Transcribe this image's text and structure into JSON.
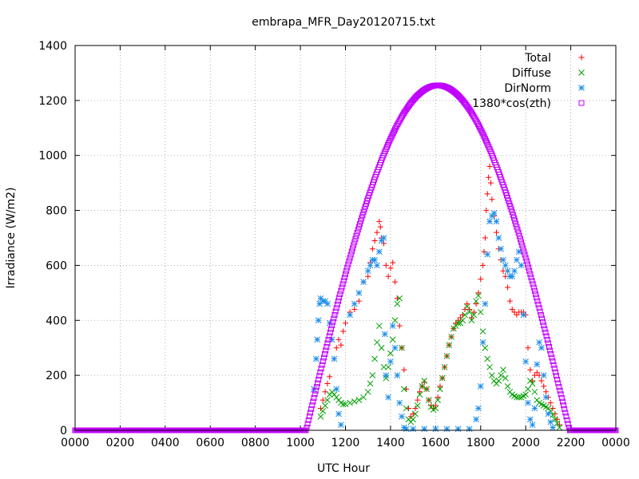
{
  "chart_data": {
    "type": "scatter",
    "title": "embrapa_MFR_Day20120715.txt",
    "xlabel": "UTC Hour",
    "ylabel": "Irradiance (W/m2)",
    "xlim": [
      0,
      24
    ],
    "ylim": [
      0,
      1400
    ],
    "xticks": [
      0,
      2,
      4,
      6,
      8,
      10,
      12,
      14,
      16,
      18,
      20,
      22,
      24
    ],
    "xtick_labels": [
      "0000",
      "0200",
      "0400",
      "0600",
      "0800",
      "1000",
      "1200",
      "1400",
      "1600",
      "1800",
      "2000",
      "2200",
      "0000"
    ],
    "yticks": [
      0,
      200,
      400,
      600,
      800,
      1000,
      1200,
      1400
    ],
    "ytick_labels": [
      "0",
      "200",
      "400",
      "600",
      "800",
      "1000",
      "1200",
      "1400"
    ],
    "grid": true,
    "legend_position": "top-right",
    "series": [
      {
        "name": "Total",
        "marker": "plus",
        "color": "#ff0000",
        "points": [
          [
            10.9,
            80
          ],
          [
            11.0,
            110
          ],
          [
            11.1,
            140
          ],
          [
            11.2,
            170
          ],
          [
            11.3,
            195
          ],
          [
            11.5,
            260
          ],
          [
            11.6,
            300
          ],
          [
            11.7,
            330
          ],
          [
            11.8,
            310
          ],
          [
            11.9,
            360
          ],
          [
            12.0,
            390
          ],
          [
            12.2,
            430
          ],
          [
            12.4,
            440
          ],
          [
            12.6,
            470
          ],
          [
            12.8,
            540
          ],
          [
            13.0,
            560
          ],
          [
            13.1,
            610
          ],
          [
            13.2,
            660
          ],
          [
            13.3,
            690
          ],
          [
            13.4,
            720
          ],
          [
            13.5,
            760
          ],
          [
            13.55,
            740
          ],
          [
            13.6,
            700
          ],
          [
            13.7,
            680
          ],
          [
            13.8,
            600
          ],
          [
            13.9,
            560
          ],
          [
            14.0,
            590
          ],
          [
            14.1,
            610
          ],
          [
            14.2,
            540
          ],
          [
            14.3,
            480
          ],
          [
            14.4,
            380
          ],
          [
            14.5,
            300
          ],
          [
            14.6,
            220
          ],
          [
            14.7,
            150
          ],
          [
            14.8,
            80
          ],
          [
            14.9,
            50
          ],
          [
            15.0,
            60
          ],
          [
            15.1,
            80
          ],
          [
            15.2,
            110
          ],
          [
            15.3,
            140
          ],
          [
            15.4,
            160
          ],
          [
            15.5,
            175
          ],
          [
            15.6,
            150
          ],
          [
            15.7,
            110
          ],
          [
            15.8,
            90
          ],
          [
            15.9,
            80
          ],
          [
            16.0,
            90
          ],
          [
            16.1,
            120
          ],
          [
            16.2,
            160
          ],
          [
            16.3,
            190
          ],
          [
            16.4,
            230
          ],
          [
            16.5,
            270
          ],
          [
            16.6,
            310
          ],
          [
            16.7,
            340
          ],
          [
            16.8,
            370
          ],
          [
            16.9,
            390
          ],
          [
            17.0,
            400
          ],
          [
            17.1,
            410
          ],
          [
            17.2,
            420
          ],
          [
            17.3,
            440
          ],
          [
            17.4,
            460
          ],
          [
            17.5,
            440
          ],
          [
            17.6,
            410
          ],
          [
            17.7,
            430
          ],
          [
            17.8,
            460
          ],
          [
            17.9,
            500
          ],
          [
            18.0,
            550
          ],
          [
            18.1,
            600
          ],
          [
            18.15,
            650
          ],
          [
            18.2,
            700
          ],
          [
            18.25,
            800
          ],
          [
            18.3,
            860
          ],
          [
            18.35,
            920
          ],
          [
            18.4,
            960
          ],
          [
            18.45,
            900
          ],
          [
            18.5,
            840
          ],
          [
            18.6,
            780
          ],
          [
            18.7,
            720
          ],
          [
            18.8,
            660
          ],
          [
            18.9,
            620
          ],
          [
            19.0,
            580
          ],
          [
            19.1,
            560
          ],
          [
            19.2,
            520
          ],
          [
            19.3,
            470
          ],
          [
            19.4,
            440
          ],
          [
            19.5,
            430
          ],
          [
            19.6,
            420
          ],
          [
            19.7,
            430
          ],
          [
            19.8,
            430
          ],
          [
            19.9,
            430
          ],
          [
            20.0,
            420
          ],
          [
            20.1,
            300
          ],
          [
            20.2,
            220
          ],
          [
            20.3,
            180
          ],
          [
            20.4,
            200
          ],
          [
            20.5,
            210
          ],
          [
            20.6,
            200
          ],
          [
            20.7,
            180
          ],
          [
            20.8,
            160
          ],
          [
            20.9,
            140
          ],
          [
            21.0,
            120
          ],
          [
            21.1,
            100
          ],
          [
            21.2,
            80
          ],
          [
            21.3,
            60
          ],
          [
            21.4,
            40
          ],
          [
            21.5,
            20
          ]
        ]
      },
      {
        "name": "Diffuse",
        "marker": "cross",
        "color": "#00a000",
        "points": [
          [
            10.9,
            50
          ],
          [
            11.0,
            70
          ],
          [
            11.1,
            90
          ],
          [
            11.2,
            110
          ],
          [
            11.3,
            130
          ],
          [
            11.4,
            140
          ],
          [
            11.5,
            130
          ],
          [
            11.6,
            120
          ],
          [
            11.7,
            110
          ],
          [
            11.8,
            100
          ],
          [
            11.9,
            95
          ],
          [
            12.0,
            95
          ],
          [
            12.2,
            100
          ],
          [
            12.4,
            105
          ],
          [
            12.6,
            110
          ],
          [
            12.8,
            120
          ],
          [
            13.0,
            140
          ],
          [
            13.1,
            170
          ],
          [
            13.2,
            200
          ],
          [
            13.3,
            260
          ],
          [
            13.4,
            320
          ],
          [
            13.5,
            380
          ],
          [
            13.6,
            300
          ],
          [
            13.7,
            230
          ],
          [
            13.8,
            190
          ],
          [
            13.9,
            230
          ],
          [
            14.0,
            280
          ],
          [
            14.1,
            330
          ],
          [
            14.2,
            400
          ],
          [
            14.3,
            460
          ],
          [
            14.4,
            480
          ],
          [
            14.5,
            300
          ],
          [
            14.6,
            150
          ],
          [
            14.7,
            80
          ],
          [
            14.8,
            40
          ],
          [
            14.9,
            30
          ],
          [
            15.0,
            40
          ],
          [
            15.1,
            60
          ],
          [
            15.2,
            90
          ],
          [
            15.3,
            130
          ],
          [
            15.4,
            160
          ],
          [
            15.5,
            180
          ],
          [
            15.6,
            150
          ],
          [
            15.7,
            110
          ],
          [
            15.8,
            85
          ],
          [
            15.9,
            75
          ],
          [
            16.0,
            80
          ],
          [
            16.1,
            110
          ],
          [
            16.2,
            150
          ],
          [
            16.3,
            190
          ],
          [
            16.4,
            230
          ],
          [
            16.5,
            270
          ],
          [
            16.6,
            310
          ],
          [
            16.7,
            340
          ],
          [
            16.8,
            370
          ],
          [
            16.9,
            380
          ],
          [
            17.0,
            390
          ],
          [
            17.1,
            390
          ],
          [
            17.2,
            400
          ],
          [
            17.3,
            420
          ],
          [
            17.4,
            450
          ],
          [
            17.5,
            430
          ],
          [
            17.6,
            400
          ],
          [
            17.7,
            420
          ],
          [
            17.8,
            470
          ],
          [
            17.9,
            490
          ],
          [
            18.0,
            430
          ],
          [
            18.1,
            360
          ],
          [
            18.2,
            300
          ],
          [
            18.3,
            260
          ],
          [
            18.4,
            230
          ],
          [
            18.5,
            200
          ],
          [
            18.6,
            180
          ],
          [
            18.7,
            170
          ],
          [
            18.8,
            180
          ],
          [
            18.9,
            200
          ],
          [
            19.0,
            220
          ],
          [
            19.1,
            190
          ],
          [
            19.2,
            160
          ],
          [
            19.3,
            140
          ],
          [
            19.4,
            130
          ],
          [
            19.5,
            125
          ],
          [
            19.6,
            120
          ],
          [
            19.7,
            120
          ],
          [
            19.8,
            120
          ],
          [
            19.9,
            125
          ],
          [
            20.0,
            130
          ],
          [
            20.1,
            150
          ],
          [
            20.2,
            180
          ],
          [
            20.3,
            170
          ],
          [
            20.4,
            140
          ],
          [
            20.5,
            110
          ],
          [
            20.6,
            100
          ],
          [
            20.7,
            95
          ],
          [
            20.8,
            90
          ],
          [
            20.9,
            85
          ],
          [
            21.0,
            80
          ],
          [
            21.1,
            70
          ],
          [
            21.2,
            55
          ],
          [
            21.3,
            40
          ],
          [
            21.4,
            25
          ],
          [
            21.5,
            10
          ]
        ]
      },
      {
        "name": "DirNorm",
        "marker": "star",
        "color": "#1e8fe8",
        "points": [
          [
            10.6,
            150
          ],
          [
            10.7,
            260
          ],
          [
            10.75,
            330
          ],
          [
            10.8,
            400
          ],
          [
            10.85,
            460
          ],
          [
            10.9,
            480
          ],
          [
            11.0,
            470
          ],
          [
            11.1,
            470
          ],
          [
            11.2,
            460
          ],
          [
            11.3,
            390
          ],
          [
            11.4,
            330
          ],
          [
            11.5,
            260
          ],
          [
            11.6,
            150
          ],
          [
            11.7,
            60
          ],
          [
            11.8,
            20
          ],
          [
            12.2,
            420
          ],
          [
            12.4,
            460
          ],
          [
            12.6,
            500
          ],
          [
            12.8,
            540
          ],
          [
            13.0,
            580
          ],
          [
            13.1,
            600
          ],
          [
            13.2,
            620
          ],
          [
            13.3,
            620
          ],
          [
            13.4,
            600
          ],
          [
            13.5,
            650
          ],
          [
            13.6,
            690
          ],
          [
            13.7,
            700
          ],
          [
            13.75,
            350
          ],
          [
            13.8,
            200
          ],
          [
            13.9,
            120
          ],
          [
            14.0,
            250
          ],
          [
            14.1,
            380
          ],
          [
            14.2,
            300
          ],
          [
            14.3,
            200
          ],
          [
            14.4,
            100
          ],
          [
            14.5,
            50
          ],
          [
            14.6,
            10
          ],
          [
            14.7,
            5
          ],
          [
            15.0,
            5
          ],
          [
            15.5,
            5
          ],
          [
            16.0,
            5
          ],
          [
            16.5,
            5
          ],
          [
            17.0,
            5
          ],
          [
            17.5,
            5
          ],
          [
            17.8,
            40
          ],
          [
            17.9,
            80
          ],
          [
            18.0,
            160
          ],
          [
            18.1,
            320
          ],
          [
            18.2,
            460
          ],
          [
            18.3,
            640
          ],
          [
            18.4,
            760
          ],
          [
            18.5,
            780
          ],
          [
            18.6,
            790
          ],
          [
            18.7,
            760
          ],
          [
            18.8,
            700
          ],
          [
            18.9,
            660
          ],
          [
            19.0,
            620
          ],
          [
            19.1,
            600
          ],
          [
            19.2,
            580
          ],
          [
            19.3,
            560
          ],
          [
            19.4,
            560
          ],
          [
            19.5,
            580
          ],
          [
            19.6,
            620
          ],
          [
            19.7,
            650
          ],
          [
            19.8,
            600
          ],
          [
            19.9,
            420
          ],
          [
            20.0,
            250
          ],
          [
            20.1,
            100
          ],
          [
            20.2,
            40
          ],
          [
            20.3,
            20
          ],
          [
            20.4,
            80
          ],
          [
            20.5,
            240
          ],
          [
            20.6,
            320
          ],
          [
            20.7,
            300
          ],
          [
            20.8,
            200
          ],
          [
            20.9,
            120
          ],
          [
            21.0,
            60
          ],
          [
            21.1,
            30
          ],
          [
            21.2,
            10
          ]
        ]
      },
      {
        "name": "1380*cos(zth)",
        "marker": "square",
        "color": "#c000ff",
        "curve": {
          "sunrise": 10.25,
          "sunset": 21.95,
          "peak_hour": 16.1,
          "peak": 1255
        }
      }
    ]
  }
}
